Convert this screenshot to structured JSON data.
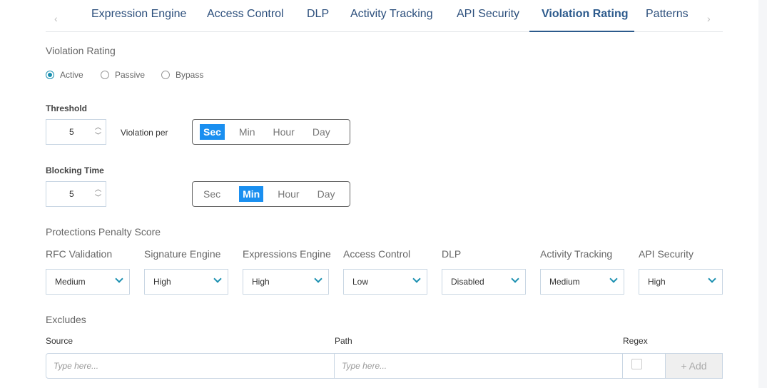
{
  "tabs": [
    {
      "label": "Expression Engine"
    },
    {
      "label": "Access Control"
    },
    {
      "label": "DLP"
    },
    {
      "label": "Activity Tracking"
    },
    {
      "label": "API Security"
    },
    {
      "label": "Violation Rating",
      "active": true
    },
    {
      "label": "Patterns"
    }
  ],
  "nav": {
    "prev": "‹",
    "next": "›"
  },
  "violation_rating": {
    "title": "Violation Rating",
    "modes": [
      "Active",
      "Passive",
      "Bypass"
    ],
    "selected": "Active"
  },
  "threshold": {
    "label": "Threshold",
    "value": "5",
    "per_label": "Violation per",
    "units": [
      "Sec",
      "Min",
      "Hour",
      "Day"
    ],
    "selected": "Sec"
  },
  "blocking": {
    "label": "Blocking Time",
    "value": "5",
    "units": [
      "Sec",
      "Min",
      "Hour",
      "Day"
    ],
    "selected": "Min"
  },
  "penalty": {
    "title": "Protections Penalty Score",
    "items": [
      {
        "label": "RFC Validation",
        "value": "Medium"
      },
      {
        "label": "Signature Engine",
        "value": "High"
      },
      {
        "label": "Expressions Engine",
        "value": "High"
      },
      {
        "label": "Access Control",
        "value": "Low"
      },
      {
        "label": "DLP",
        "value": "Disabled"
      },
      {
        "label": "Activity Tracking",
        "value": "Medium"
      },
      {
        "label": "API Security",
        "value": "High"
      }
    ]
  },
  "excludes": {
    "title": "Excludes",
    "source_label": "Source",
    "path_label": "Path",
    "regex_label": "Regex",
    "source_placeholder": "Type here...",
    "path_placeholder": "Type here...",
    "add_label": "+ Add"
  },
  "colors": {
    "accent": "#1a8ff0",
    "tab_active": "#2c5a8c",
    "radio": "#1a8fb0"
  }
}
